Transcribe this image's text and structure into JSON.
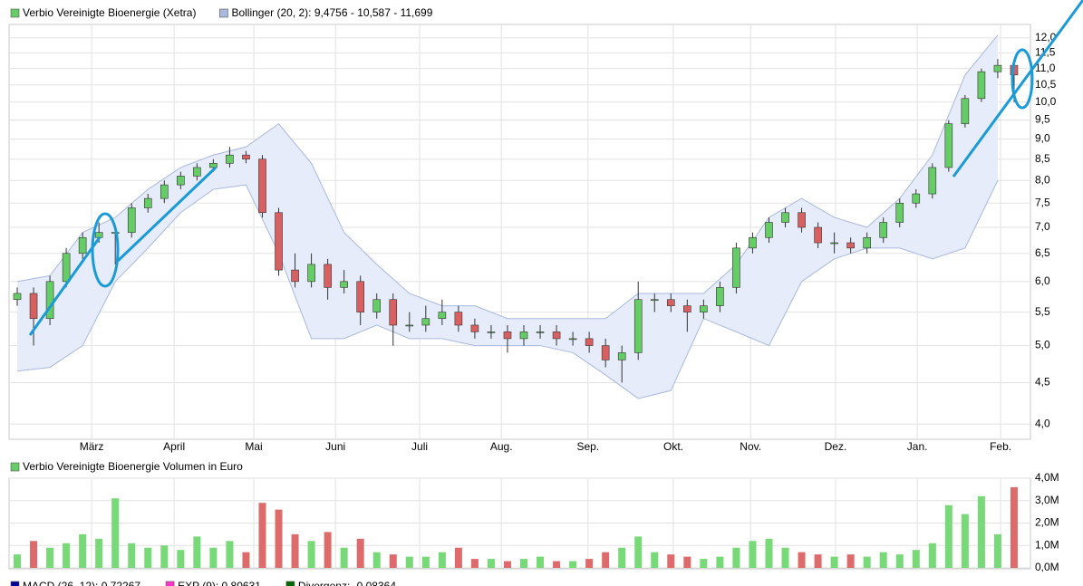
{
  "chart_data": [
    {
      "type": "candlestick",
      "log_scale": true,
      "grid": true,
      "xlim": [
        0,
        250
      ],
      "xticks": [
        {
          "value": 20.2,
          "label": "März"
        },
        {
          "value": 40.4,
          "label": "April"
        },
        {
          "value": 59.9,
          "label": "Mai"
        },
        {
          "value": 79.9,
          "label": "Juni"
        },
        {
          "value": 100.5,
          "label": "Juli"
        },
        {
          "value": 120.5,
          "label": "Aug."
        },
        {
          "value": 141.7,
          "label": "Sep."
        },
        {
          "value": 162.6,
          "label": "Okt."
        },
        {
          "value": 181.5,
          "label": "Nov."
        },
        {
          "value": 202.3,
          "label": "Dez."
        },
        {
          "value": 222.3,
          "label": "Jan."
        },
        {
          "value": 242.7,
          "label": "Feb."
        }
      ],
      "ylim": [
        3.83,
        12.47
      ],
      "yticks": [
        {
          "value": 4,
          "label": "4,0"
        },
        {
          "value": 4.5,
          "label": "4,5"
        },
        {
          "value": 5,
          "label": "5,0"
        },
        {
          "value": 5.5,
          "label": "5,5"
        },
        {
          "value": 6,
          "label": "6,0"
        },
        {
          "value": 6.5,
          "label": "6,5"
        },
        {
          "value": 7,
          "label": "7,0"
        },
        {
          "value": 7.5,
          "label": "7,5"
        },
        {
          "value": 8,
          "label": "8,0"
        },
        {
          "value": 8.5,
          "label": "8,5"
        },
        {
          "value": 9,
          "label": "9,0"
        },
        {
          "value": 9.5,
          "label": "9,5"
        },
        {
          "value": 10,
          "label": "10,0"
        },
        {
          "value": 10.5,
          "label": "10,5"
        },
        {
          "value": 11,
          "label": "11,0"
        },
        {
          "value": 11.5,
          "label": "11,5"
        },
        {
          "value": 12,
          "label": "12,0"
        }
      ],
      "series": [
        {
          "name": "Verbio Vereinigte Bioenergie (Xetra)",
          "color": "#66cc66",
          "down_color": "#d96060",
          "x": [
            2,
            6,
            10,
            14,
            18,
            22,
            26,
            30,
            34,
            38,
            42,
            46,
            50,
            54,
            58,
            62,
            66,
            70,
            74,
            78,
            82,
            86,
            90,
            94,
            98,
            102,
            106,
            110,
            114,
            118,
            122,
            126,
            130,
            134,
            138,
            142,
            146,
            150,
            154,
            158,
            162,
            166,
            170,
            174,
            178,
            182,
            186,
            190,
            194,
            198,
            202,
            206,
            210,
            214,
            218,
            222,
            226,
            230,
            234,
            238,
            242,
            246
          ],
          "open": [
            5.7,
            5.8,
            5.4,
            6.0,
            6.5,
            6.8,
            6.9,
            6.9,
            7.4,
            7.6,
            7.9,
            8.1,
            8.3,
            8.4,
            8.6,
            8.5,
            7.3,
            6.2,
            6.0,
            6.3,
            5.9,
            6.0,
            5.5,
            5.7,
            5.3,
            5.3,
            5.4,
            5.5,
            5.3,
            5.2,
            5.2,
            5.1,
            5.2,
            5.2,
            5.1,
            5.1,
            5.0,
            4.8,
            4.9,
            5.7,
            5.7,
            5.6,
            5.5,
            5.6,
            5.9,
            6.6,
            6.8,
            7.1,
            7.3,
            7.0,
            6.7,
            6.7,
            6.6,
            6.8,
            7.1,
            7.5,
            7.7,
            8.3,
            9.4,
            10.1,
            10.9,
            11.1
          ],
          "high": [
            5.9,
            5.9,
            6.1,
            6.6,
            6.9,
            7.1,
            7.0,
            7.5,
            7.7,
            8.0,
            8.2,
            8.4,
            8.5,
            8.8,
            8.7,
            8.6,
            7.4,
            6.5,
            6.5,
            6.4,
            6.2,
            6.1,
            5.8,
            5.8,
            5.5,
            5.6,
            5.7,
            5.6,
            5.4,
            5.3,
            5.3,
            5.3,
            5.3,
            5.3,
            5.2,
            5.2,
            5.1,
            5.0,
            6.0,
            5.8,
            5.8,
            5.7,
            5.7,
            6.0,
            6.7,
            6.9,
            7.2,
            7.4,
            7.4,
            7.1,
            6.9,
            6.8,
            6.9,
            7.2,
            7.6,
            7.8,
            8.4,
            9.5,
            10.2,
            11.0,
            11.3,
            11.2
          ],
          "low": [
            5.6,
            5.0,
            5.3,
            5.9,
            6.4,
            6.7,
            6.3,
            6.8,
            7.3,
            7.5,
            7.8,
            8.0,
            8.2,
            8.3,
            8.4,
            7.2,
            6.1,
            5.9,
            5.9,
            5.7,
            5.8,
            5.3,
            5.4,
            5.0,
            5.2,
            5.2,
            5.3,
            5.2,
            5.1,
            5.1,
            4.9,
            5.0,
            5.1,
            5.0,
            5.0,
            4.9,
            4.7,
            4.5,
            4.8,
            5.5,
            5.5,
            5.2,
            5.4,
            5.5,
            5.8,
            6.5,
            6.7,
            7.0,
            6.9,
            6.6,
            6.5,
            6.5,
            6.5,
            6.7,
            7.0,
            7.4,
            7.6,
            8.2,
            9.3,
            10.0,
            10.7,
            10.0
          ],
          "close": [
            5.8,
            5.4,
            6.0,
            6.5,
            6.8,
            6.9,
            6.9,
            7.4,
            7.6,
            7.9,
            8.1,
            8.3,
            8.4,
            8.6,
            8.5,
            7.3,
            6.2,
            6.0,
            6.3,
            5.9,
            6.0,
            5.5,
            5.7,
            5.3,
            5.3,
            5.4,
            5.5,
            5.3,
            5.2,
            5.2,
            5.1,
            5.2,
            5.2,
            5.1,
            5.1,
            5.0,
            4.8,
            4.9,
            5.7,
            5.7,
            5.6,
            5.5,
            5.6,
            5.9,
            6.6,
            6.8,
            7.1,
            7.3,
            7.0,
            6.7,
            6.7,
            6.6,
            6.8,
            7.1,
            7.5,
            7.7,
            8.3,
            9.4,
            10.1,
            10.9,
            11.1,
            10.8
          ]
        },
        {
          "name": "Bollinger (20, 2): 9,4756 - 10,587 - 11,699",
          "color": "#a9b9dd",
          "fill": "#e6ecfa",
          "x": [
            2,
            10,
            18,
            26,
            34,
            42,
            50,
            58,
            66,
            74,
            82,
            90,
            98,
            106,
            114,
            122,
            130,
            138,
            146,
            154,
            162,
            170,
            178,
            186,
            194,
            202,
            210,
            218,
            226,
            234,
            242
          ],
          "upper": [
            6.0,
            6.1,
            6.9,
            7.2,
            7.8,
            8.3,
            8.6,
            8.8,
            9.4,
            8.4,
            6.9,
            6.3,
            5.8,
            5.6,
            5.6,
            5.4,
            5.4,
            5.4,
            5.4,
            5.8,
            5.8,
            5.8,
            6.3,
            7.2,
            7.6,
            7.2,
            7.0,
            7.6,
            8.6,
            10.8,
            12.1
          ],
          "lower": [
            4.65,
            4.7,
            5.0,
            6.0,
            6.6,
            7.3,
            7.8,
            7.9,
            6.5,
            5.1,
            5.1,
            5.3,
            5.1,
            5.1,
            5.0,
            5.0,
            5.0,
            4.9,
            4.6,
            4.3,
            4.4,
            5.4,
            5.2,
            5.0,
            6.0,
            6.4,
            6.6,
            6.6,
            6.4,
            6.6,
            8.0
          ]
        }
      ]
    },
    {
      "type": "bar",
      "title": "Verbio Vereinigte Bioenergie Volumen in Euro",
      "legend_color": "#66cc66",
      "grid": true,
      "xlim": [
        0,
        250
      ],
      "ylim": [
        0,
        4000000
      ],
      "yticks": [
        {
          "value": 0,
          "label": "0,0M"
        },
        {
          "value": 1000000,
          "label": "1,0M"
        },
        {
          "value": 2000000,
          "label": "2,0M"
        },
        {
          "value": 3000000,
          "label": "3,0M"
        },
        {
          "value": 4000000,
          "label": "4,0M"
        }
      ],
      "up_color": "#77d977",
      "down_color": "#dd6b6b",
      "x": [
        2,
        6,
        10,
        14,
        18,
        22,
        26,
        30,
        34,
        38,
        42,
        46,
        50,
        54,
        58,
        62,
        66,
        70,
        74,
        78,
        82,
        86,
        90,
        94,
        98,
        102,
        106,
        110,
        114,
        118,
        122,
        126,
        130,
        134,
        138,
        142,
        146,
        150,
        154,
        158,
        162,
        166,
        170,
        174,
        178,
        182,
        186,
        190,
        194,
        198,
        202,
        206,
        210,
        214,
        218,
        222,
        226,
        230,
        234,
        238,
        242,
        246
      ],
      "values": [
        600000,
        1200000,
        900000,
        1100000,
        1500000,
        1300000,
        3100000,
        1100000,
        900000,
        1000000,
        800000,
        1400000,
        900000,
        1200000,
        700000,
        2900000,
        2600000,
        1500000,
        1200000,
        1600000,
        900000,
        1300000,
        700000,
        600000,
        500000,
        500000,
        700000,
        900000,
        400000,
        400000,
        300000,
        400000,
        500000,
        300000,
        300000,
        400000,
        700000,
        900000,
        1400000,
        700000,
        600000,
        500000,
        400000,
        500000,
        900000,
        1200000,
        1300000,
        900000,
        700000,
        600000,
        500000,
        600000,
        500000,
        700000,
        600000,
        800000,
        1100000,
        2800000,
        2400000,
        3200000,
        1500000,
        3600000
      ]
    }
  ],
  "indicators": [
    {
      "label": "MACD (26, 12): 0,72267",
      "color": "#000099"
    },
    {
      "label": "EXP (9): 0,80631",
      "color": "#ff33cc"
    },
    {
      "label": "Divergenz: -0,08364",
      "color": "#006600"
    }
  ]
}
